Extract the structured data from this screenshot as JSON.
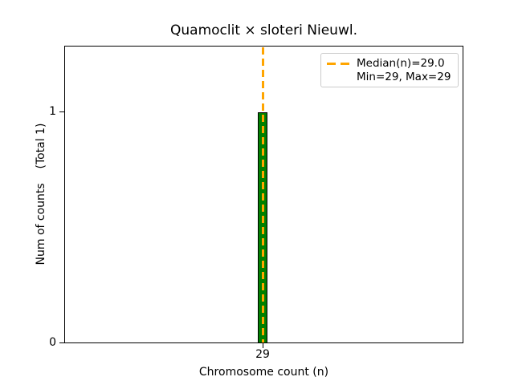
{
  "figure": {
    "title": "Quamoclit × sloteri Nieuwl.",
    "xlabel": "Chromosome count (n)",
    "ylabel": "Num of counts    (Total 1)"
  },
  "axes": {
    "x_tick_labels": [
      "29"
    ],
    "y_tick_labels": [
      "0",
      "1"
    ]
  },
  "legend": {
    "entries": [
      {
        "label": "Median(n)=29.0",
        "marker": "orange-dashed-line"
      },
      {
        "label": "Min=29, Max=29",
        "marker": "none"
      }
    ]
  },
  "colors": {
    "bar_fill": "#008000",
    "bar_edge": "#000000",
    "median_line": "#FFA500",
    "spine": "#000000",
    "legend_border": "#cccccc",
    "background": "#ffffff",
    "text": "#000000"
  },
  "chart_data": {
    "type": "bar",
    "categories": [
      29
    ],
    "values": [
      1
    ],
    "title": "Quamoclit × sloteri Nieuwl.",
    "xlabel": "Chromosome count (n)",
    "ylabel": "Num of counts    (Total 1)",
    "ylim": [
      0,
      1.29
    ],
    "y_ticks": [
      0,
      1
    ],
    "x_ticks": [
      29
    ],
    "median": 29.0,
    "min": 29,
    "max": 29,
    "total_counts": 1,
    "grid": false,
    "legend_position": "upper right",
    "annotations": [
      "Median(n)=29.0",
      "Min=29, Max=29"
    ]
  }
}
